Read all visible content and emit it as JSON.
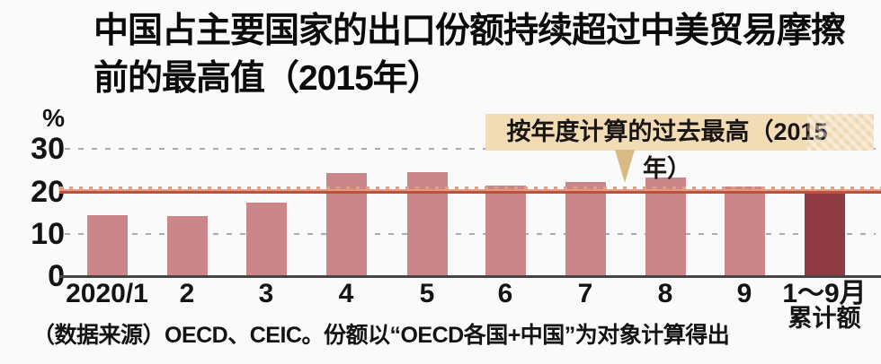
{
  "chart_data": {
    "type": "bar",
    "title": "中国占主要国家的出口份额持续超过中美贸易摩擦前的最高值（2015年）",
    "title_lines": [
      "中国占主要国家的出口份额持续超过中美贸易摩擦",
      "前的最高值（2015年）"
    ],
    "ylabel": "%",
    "ylim": [
      0,
      30
    ],
    "yticks": [
      30,
      20,
      10,
      0
    ],
    "grid": "horizontal dashed gridlines at 10, 20, 30; no vertical axis line",
    "legend": "none",
    "categories": [
      "2020/1",
      "2",
      "3",
      "4",
      "5",
      "6",
      "7",
      "8",
      "9",
      "1～9月"
    ],
    "last_category_note": "累计额",
    "values": [
      14.5,
      14.2,
      17.4,
      24.3,
      24.6,
      21.5,
      22.3,
      23.2,
      21.1,
      20.2
    ],
    "highlight_index": 9,
    "reference_line": {
      "value": 20,
      "label": "按年度计算的过去最高（2015年）",
      "style": "solid red line with light-orange dotted line above, spanning full plot width"
    },
    "source": "（数据来源）OECD、CEIC。份额以“OECD各国+中国”为对象计算得出",
    "colors": {
      "bar": "#ca8689",
      "highlight_bar": "#8e3b43",
      "reference_line": "#c14f3e",
      "reference_dots": "#dfa183",
      "annotation_bg": "#f2dcb6",
      "annotation_pointer": "#d9ba85",
      "gridline": "#a7acb4",
      "axis": "#454545",
      "background": "#fbfafa"
    }
  }
}
